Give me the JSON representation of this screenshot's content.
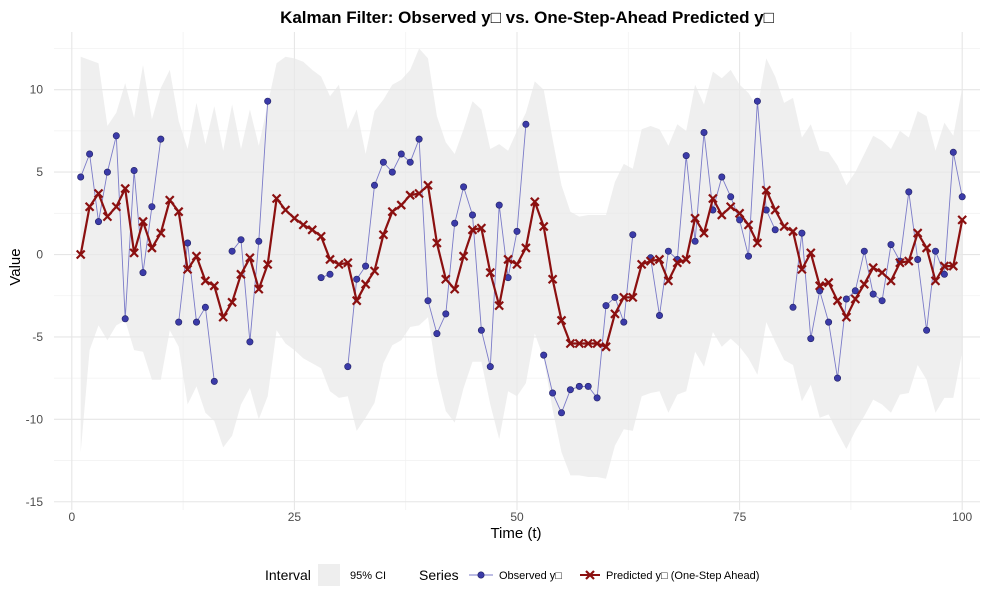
{
  "chart_data": {
    "type": "line",
    "title": "Kalman Filter: Observed y□ vs. One-Step-Ahead Predicted y□",
    "xlabel": "Time (t)",
    "ylabel": "Value",
    "xlim": [
      -2,
      102
    ],
    "ylim": [
      -15.5,
      13.5
    ],
    "x_ticks": [
      0,
      25,
      50,
      75,
      100
    ],
    "y_ticks": [
      -15,
      -10,
      -5,
      0,
      5,
      10
    ],
    "grid": true,
    "legend_placement": "bottom",
    "colors": {
      "observed_line": "#7b7bc8",
      "observed_point": "#3b3ba8",
      "predicted": "#8b1010",
      "ci_fill": "#e8e8e8",
      "grid_major": "#e6e6e6",
      "grid_minor": "#f2f2f2"
    },
    "legend": {
      "interval_title": "Interval",
      "interval_label": "95% CI",
      "series_title": "Series",
      "observed_label": "Observed y□",
      "predicted_label": "Predicted y□ (One-Step Ahead)"
    },
    "observed": [
      [
        1,
        4.7
      ],
      [
        2,
        6.1
      ],
      [
        3,
        2.0
      ],
      [
        4,
        5.0
      ],
      [
        5,
        7.2
      ],
      [
        6,
        -3.9
      ],
      [
        7,
        5.1
      ],
      [
        8,
        -1.1
      ],
      [
        9,
        2.9
      ],
      [
        10,
        7.0
      ],
      [
        12,
        -4.1
      ],
      [
        13,
        0.7
      ],
      [
        14,
        -4.1
      ],
      [
        15,
        -3.2
      ],
      [
        16,
        -7.7
      ],
      [
        18,
        0.2
      ],
      [
        19,
        0.9
      ],
      [
        20,
        -5.3
      ],
      [
        21,
        0.8
      ],
      [
        22,
        9.3
      ],
      [
        28,
        -1.4
      ],
      [
        29,
        -1.2
      ],
      [
        31,
        -6.8
      ],
      [
        32,
        -1.5
      ],
      [
        33,
        -0.7
      ],
      [
        34,
        4.2
      ],
      [
        35,
        5.6
      ],
      [
        36,
        5.0
      ],
      [
        37,
        6.1
      ],
      [
        38,
        5.6
      ],
      [
        39,
        7.0
      ],
      [
        40,
        -2.8
      ],
      [
        41,
        -4.8
      ],
      [
        42,
        -3.6
      ],
      [
        43,
        1.9
      ],
      [
        44,
        4.1
      ],
      [
        45,
        2.4
      ],
      [
        46,
        -4.6
      ],
      [
        47,
        -6.8
      ],
      [
        48,
        3.0
      ],
      [
        49,
        -1.4
      ],
      [
        50,
        1.4
      ],
      [
        51,
        7.9
      ],
      [
        53,
        -6.1
      ],
      [
        54,
        -8.4
      ],
      [
        55,
        -9.6
      ],
      [
        56,
        -8.2
      ],
      [
        57,
        -8.0
      ],
      [
        58,
        -8.0
      ],
      [
        59,
        -8.7
      ],
      [
        60,
        -3.1
      ],
      [
        61,
        -2.6
      ],
      [
        62,
        -4.1
      ],
      [
        63,
        1.2
      ],
      [
        65,
        -0.2
      ],
      [
        66,
        -3.7
      ],
      [
        67,
        0.2
      ],
      [
        68,
        -0.3
      ],
      [
        69,
        6.0
      ],
      [
        70,
        0.8
      ],
      [
        71,
        7.4
      ],
      [
        72,
        2.7
      ],
      [
        73,
        4.7
      ],
      [
        74,
        3.5
      ],
      [
        75,
        2.1
      ],
      [
        76,
        -0.1
      ],
      [
        77,
        9.3
      ],
      [
        78,
        2.7
      ],
      [
        79,
        1.5
      ],
      [
        81,
        -3.2
      ],
      [
        82,
        1.3
      ],
      [
        83,
        -5.1
      ],
      [
        84,
        -2.2
      ],
      [
        85,
        -4.1
      ],
      [
        86,
        -7.5
      ],
      [
        87,
        -2.7
      ],
      [
        88,
        -2.2
      ],
      [
        89,
        0.2
      ],
      [
        90,
        -2.4
      ],
      [
        91,
        -2.8
      ],
      [
        92,
        0.6
      ],
      [
        93,
        -0.4
      ],
      [
        94,
        3.8
      ],
      [
        95,
        -0.3
      ],
      [
        96,
        -4.6
      ],
      [
        97,
        0.2
      ],
      [
        98,
        -1.2
      ],
      [
        99,
        6.2
      ],
      [
        100,
        3.5
      ]
    ],
    "predicted": [
      [
        1,
        0.0
      ],
      [
        2,
        2.9
      ],
      [
        3,
        3.7
      ],
      [
        4,
        2.3
      ],
      [
        5,
        2.9
      ],
      [
        6,
        4.0
      ],
      [
        7,
        0.1
      ],
      [
        8,
        2.0
      ],
      [
        9,
        0.4
      ],
      [
        10,
        1.3
      ],
      [
        11,
        3.3
      ],
      [
        12,
        2.6
      ],
      [
        13,
        -0.9
      ],
      [
        14,
        -0.1
      ],
      [
        15,
        -1.6
      ],
      [
        16,
        -1.9
      ],
      [
        17,
        -3.8
      ],
      [
        18,
        -2.9
      ],
      [
        19,
        -1.2
      ],
      [
        20,
        -0.2
      ],
      [
        21,
        -2.1
      ],
      [
        22,
        -0.6
      ],
      [
        23,
        3.4
      ],
      [
        24,
        2.7
      ],
      [
        25,
        2.2
      ],
      [
        26,
        1.8
      ],
      [
        27,
        1.5
      ],
      [
        28,
        1.1
      ],
      [
        29,
        -0.3
      ],
      [
        30,
        -0.6
      ],
      [
        31,
        -0.5
      ],
      [
        32,
        -2.8
      ],
      [
        33,
        -1.8
      ],
      [
        34,
        -1.0
      ],
      [
        35,
        1.2
      ],
      [
        36,
        2.6
      ],
      [
        37,
        3.0
      ],
      [
        38,
        3.6
      ],
      [
        39,
        3.7
      ],
      [
        40,
        4.2
      ],
      [
        41,
        0.7
      ],
      [
        42,
        -1.5
      ],
      [
        43,
        -2.1
      ],
      [
        44,
        -0.1
      ],
      [
        45,
        1.5
      ],
      [
        46,
        1.6
      ],
      [
        47,
        -1.1
      ],
      [
        48,
        -3.1
      ],
      [
        49,
        -0.3
      ],
      [
        50,
        -0.6
      ],
      [
        51,
        0.4
      ],
      [
        52,
        3.2
      ],
      [
        53,
        1.7
      ],
      [
        54,
        -1.5
      ],
      [
        55,
        -4.0
      ],
      [
        56,
        -5.4
      ],
      [
        57,
        -5.4
      ],
      [
        58,
        -5.4
      ],
      [
        59,
        -5.4
      ],
      [
        60,
        -5.6
      ],
      [
        61,
        -3.6
      ],
      [
        62,
        -2.6
      ],
      [
        63,
        -2.6
      ],
      [
        64,
        -0.6
      ],
      [
        65,
        -0.4
      ],
      [
        66,
        -0.3
      ],
      [
        67,
        -1.6
      ],
      [
        68,
        -0.5
      ],
      [
        69,
        -0.3
      ],
      [
        70,
        2.2
      ],
      [
        71,
        1.3
      ],
      [
        72,
        3.4
      ],
      [
        73,
        2.4
      ],
      [
        74,
        2.9
      ],
      [
        75,
        2.5
      ],
      [
        76,
        1.8
      ],
      [
        77,
        0.7
      ],
      [
        78,
        3.9
      ],
      [
        79,
        2.7
      ],
      [
        80,
        1.7
      ],
      [
        81,
        1.4
      ],
      [
        82,
        -0.9
      ],
      [
        83,
        0.1
      ],
      [
        84,
        -1.9
      ],
      [
        85,
        -1.7
      ],
      [
        86,
        -2.8
      ],
      [
        87,
        -3.8
      ],
      [
        88,
        -2.7
      ],
      [
        89,
        -1.8
      ],
      [
        90,
        -0.8
      ],
      [
        91,
        -1.1
      ],
      [
        92,
        -1.6
      ],
      [
        93,
        -0.5
      ],
      [
        94,
        -0.4
      ],
      [
        95,
        1.3
      ],
      [
        96,
        0.4
      ],
      [
        97,
        -1.6
      ],
      [
        98,
        -0.7
      ],
      [
        99,
        -0.7
      ],
      [
        100,
        2.1
      ]
    ],
    "ci_upper": [
      [
        1,
        12.0
      ],
      [
        2,
        11.8
      ],
      [
        3,
        11.6
      ],
      [
        4,
        7.8
      ],
      [
        5,
        8.6
      ],
      [
        6,
        10.4
      ],
      [
        7,
        8.3
      ],
      [
        8,
        11.5
      ],
      [
        9,
        8.2
      ],
      [
        10,
        10.1
      ],
      [
        11,
        11.2
      ],
      [
        12,
        8.1
      ],
      [
        13,
        6.4
      ],
      [
        14,
        9.2
      ],
      [
        15,
        6.7
      ],
      [
        16,
        9.0
      ],
      [
        17,
        6.3
      ],
      [
        18,
        9.1
      ],
      [
        19,
        6.4
      ],
      [
        20,
        8.8
      ],
      [
        21,
        6.6
      ],
      [
        22,
        9.1
      ],
      [
        23,
        11.6
      ],
      [
        24,
        12.0
      ],
      [
        25,
        11.9
      ],
      [
        26,
        11.7
      ],
      [
        27,
        11.2
      ],
      [
        28,
        10.8
      ],
      [
        29,
        9.6
      ],
      [
        30,
        10.3
      ],
      [
        31,
        7.6
      ],
      [
        32,
        8.8
      ],
      [
        33,
        6.1
      ],
      [
        34,
        8.7
      ],
      [
        35,
        9.4
      ],
      [
        36,
        10.3
      ],
      [
        37,
        10.6
      ],
      [
        38,
        11.2
      ],
      [
        39,
        12.5
      ],
      [
        40,
        11.9
      ],
      [
        41,
        8.4
      ],
      [
        42,
        6.8
      ],
      [
        43,
        6.1
      ],
      [
        44,
        7.6
      ],
      [
        45,
        9.3
      ],
      [
        46,
        8.8
      ],
      [
        47,
        6.4
      ],
      [
        48,
        6.7
      ],
      [
        49,
        6.3
      ],
      [
        50,
        7.5
      ],
      [
        51,
        8.6
      ],
      [
        52,
        10.5
      ],
      [
        53,
        10.0
      ],
      [
        54,
        7.0
      ],
      [
        55,
        4.2
      ],
      [
        56,
        2.6
      ],
      [
        57,
        2.3
      ],
      [
        58,
        2.4
      ],
      [
        59,
        2.4
      ],
      [
        60,
        2.4
      ],
      [
        61,
        4.4
      ],
      [
        62,
        5.5
      ],
      [
        63,
        5.2
      ],
      [
        64,
        7.6
      ],
      [
        65,
        7.8
      ],
      [
        66,
        7.6
      ],
      [
        67,
        6.6
      ],
      [
        68,
        7.9
      ],
      [
        69,
        7.5
      ],
      [
        70,
        10.3
      ],
      [
        71,
        9.1
      ],
      [
        72,
        11.1
      ],
      [
        73,
        10.7
      ],
      [
        74,
        11.2
      ],
      [
        75,
        10.3
      ],
      [
        76,
        9.8
      ],
      [
        77,
        8.9
      ],
      [
        78,
        11.9
      ],
      [
        79,
        10.8
      ],
      [
        80,
        9.2
      ],
      [
        81,
        9.5
      ],
      [
        82,
        7.1
      ],
      [
        83,
        7.9
      ],
      [
        84,
        6.3
      ],
      [
        85,
        6.2
      ],
      [
        86,
        5.4
      ],
      [
        87,
        4.2
      ],
      [
        88,
        5.0
      ],
      [
        89,
        6.1
      ],
      [
        90,
        7.2
      ],
      [
        91,
        6.9
      ],
      [
        92,
        6.4
      ],
      [
        93,
        7.5
      ],
      [
        94,
        7.1
      ],
      [
        95,
        8.7
      ],
      [
        96,
        8.4
      ],
      [
        97,
        6.3
      ],
      [
        98,
        8.0
      ],
      [
        99,
        7.2
      ],
      [
        100,
        10.1
      ]
    ],
    "ci_lower": [
      [
        1,
        -12.0
      ],
      [
        2,
        -5.8
      ],
      [
        3,
        -4.3
      ],
      [
        4,
        -5.2
      ],
      [
        5,
        -4.3
      ],
      [
        6,
        -4.0
      ],
      [
        7,
        -5.8
      ],
      [
        8,
        -5.9
      ],
      [
        9,
        -7.6
      ],
      [
        10,
        -7.6
      ],
      [
        11,
        -4.6
      ],
      [
        12,
        -5.6
      ],
      [
        13,
        -9.1
      ],
      [
        14,
        -8.0
      ],
      [
        15,
        -9.6
      ],
      [
        16,
        -10.1
      ],
      [
        17,
        -11.7
      ],
      [
        18,
        -11.0
      ],
      [
        19,
        -9.1
      ],
      [
        20,
        -8.1
      ],
      [
        21,
        -10.0
      ],
      [
        22,
        -8.6
      ],
      [
        23,
        -4.6
      ],
      [
        24,
        -5.4
      ],
      [
        25,
        -5.8
      ],
      [
        26,
        -6.3
      ],
      [
        27,
        -6.6
      ],
      [
        28,
        -6.9
      ],
      [
        29,
        -8.3
      ],
      [
        30,
        -8.7
      ],
      [
        31,
        -8.6
      ],
      [
        32,
        -10.7
      ],
      [
        33,
        -9.9
      ],
      [
        34,
        -9.0
      ],
      [
        35,
        -6.6
      ],
      [
        36,
        -5.5
      ],
      [
        37,
        -5.2
      ],
      [
        38,
        -4.4
      ],
      [
        39,
        -4.3
      ],
      [
        40,
        -3.8
      ],
      [
        41,
        -7.3
      ],
      [
        42,
        -9.5
      ],
      [
        43,
        -10.2
      ],
      [
        44,
        -8.1
      ],
      [
        45,
        -6.5
      ],
      [
        46,
        -6.5
      ],
      [
        47,
        -9.1
      ],
      [
        48,
        -11.2
      ],
      [
        49,
        -8.3
      ],
      [
        50,
        -8.6
      ],
      [
        51,
        -7.8
      ],
      [
        52,
        -4.8
      ],
      [
        53,
        -6.3
      ],
      [
        54,
        -9.4
      ],
      [
        55,
        -12.0
      ],
      [
        56,
        -13.4
      ],
      [
        57,
        -13.4
      ],
      [
        58,
        -13.5
      ],
      [
        59,
        -13.5
      ],
      [
        60,
        -13.6
      ],
      [
        61,
        -11.6
      ],
      [
        62,
        -10.6
      ],
      [
        63,
        -10.7
      ],
      [
        64,
        -8.6
      ],
      [
        65,
        -8.4
      ],
      [
        66,
        -8.3
      ],
      [
        67,
        -9.6
      ],
      [
        68,
        -8.5
      ],
      [
        69,
        -8.3
      ],
      [
        70,
        -5.9
      ],
      [
        71,
        -6.8
      ],
      [
        72,
        -4.7
      ],
      [
        73,
        -5.6
      ],
      [
        74,
        -5.1
      ],
      [
        75,
        -5.6
      ],
      [
        76,
        -6.3
      ],
      [
        77,
        -7.3
      ],
      [
        78,
        -4.1
      ],
      [
        79,
        -5.3
      ],
      [
        80,
        -6.4
      ],
      [
        81,
        -6.7
      ],
      [
        82,
        -8.9
      ],
      [
        83,
        -7.9
      ],
      [
        84,
        -9.9
      ],
      [
        85,
        -9.7
      ],
      [
        86,
        -10.8
      ],
      [
        87,
        -11.8
      ],
      [
        88,
        -10.7
      ],
      [
        89,
        -9.8
      ],
      [
        90,
        -8.8
      ],
      [
        91,
        -9.1
      ],
      [
        92,
        -9.6
      ],
      [
        93,
        -8.5
      ],
      [
        94,
        -8.4
      ],
      [
        95,
        -6.7
      ],
      [
        96,
        -7.6
      ],
      [
        97,
        -9.6
      ],
      [
        98,
        -8.7
      ],
      [
        99,
        -8.7
      ],
      [
        100,
        -5.9
      ]
    ]
  }
}
